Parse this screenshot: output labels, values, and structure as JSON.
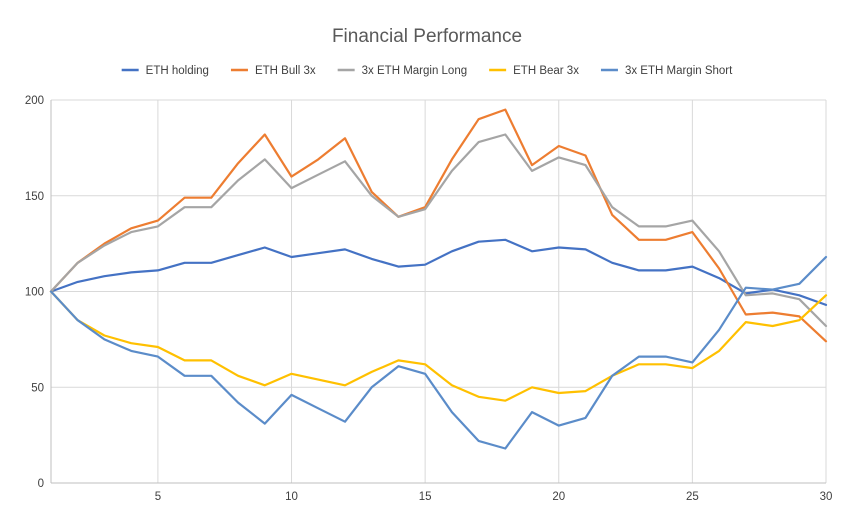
{
  "chart_data": {
    "type": "line",
    "title": "Financial Performance",
    "xlabel": "",
    "ylabel": "",
    "xlim": [
      1,
      30
    ],
    "ylim": [
      0,
      200
    ],
    "x_ticks": [
      5,
      10,
      15,
      20,
      25,
      30
    ],
    "y_ticks": [
      0,
      50,
      100,
      150,
      200
    ],
    "grid": true,
    "legend_position": "top",
    "x": [
      1,
      2,
      3,
      4,
      5,
      6,
      7,
      8,
      9,
      10,
      11,
      12,
      13,
      14,
      15,
      16,
      17,
      18,
      19,
      20,
      21,
      22,
      23,
      24,
      25,
      26,
      27,
      28,
      29,
      30
    ],
    "series": [
      {
        "name": "ETH holding",
        "color": "#4472C4",
        "values": [
          100,
          105,
          108,
          110,
          111,
          115,
          115,
          119,
          123,
          118,
          120,
          122,
          117,
          113,
          114,
          121,
          126,
          127,
          121,
          123,
          122,
          115,
          111,
          111,
          113,
          107,
          99,
          101,
          98,
          93
        ]
      },
      {
        "name": "ETH Bull 3x",
        "color": "#ED7D31",
        "values": [
          100,
          115,
          125,
          133,
          137,
          149,
          149,
          167,
          182,
          160,
          169,
          180,
          152,
          139,
          144,
          169,
          190,
          195,
          166,
          176,
          171,
          140,
          127,
          127,
          131,
          112,
          88,
          89,
          87,
          74
        ]
      },
      {
        "name": "3x ETH Margin Long",
        "color": "#A5A5A5",
        "values": [
          100,
          115,
          124,
          131,
          134,
          144,
          144,
          158,
          169,
          154,
          161,
          168,
          150,
          139,
          143,
          163,
          178,
          182,
          163,
          170,
          166,
          144,
          134,
          134,
          137,
          121,
          98,
          99,
          96,
          82
        ]
      },
      {
        "name": "ETH Bear 3x",
        "color": "#FFC000",
        "values": [
          100,
          85,
          77,
          73,
          71,
          64,
          64,
          56,
          51,
          57,
          54,
          51,
          58,
          64,
          62,
          51,
          45,
          43,
          50,
          47,
          48,
          56,
          62,
          62,
          60,
          69,
          84,
          82,
          85,
          98
        ]
      },
      {
        "name": "3x ETH Margin Short",
        "color": "#5B8CC9",
        "values": [
          100,
          85,
          75,
          69,
          66,
          56,
          56,
          42,
          31,
          46,
          39,
          32,
          50,
          61,
          57,
          37,
          22,
          18,
          37,
          30,
          34,
          56,
          66,
          66,
          63,
          80,
          102,
          101,
          104,
          118
        ]
      }
    ]
  }
}
